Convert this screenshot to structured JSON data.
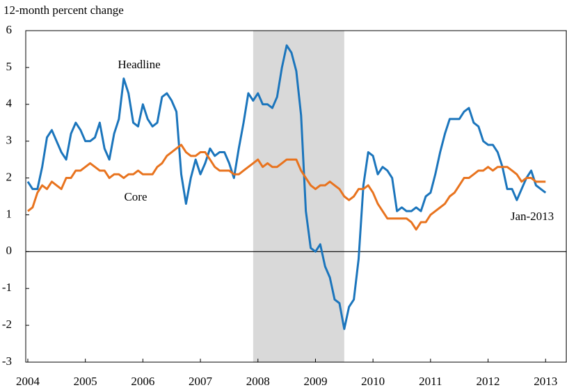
{
  "chart_data": {
    "type": "line",
    "y_axis_label": "12-month percent change",
    "annotations": [
      "Headline",
      "Core",
      "Jan-2013"
    ],
    "shaded_span": [
      2007.917,
      2009.5
    ],
    "shade_color": "#d9d9d9",
    "x": [
      2004,
      2004.083,
      2004.167,
      2004.25,
      2004.333,
      2004.417,
      2004.5,
      2004.583,
      2004.667,
      2004.75,
      2004.833,
      2004.917,
      2005,
      2005.083,
      2005.167,
      2005.25,
      2005.333,
      2005.417,
      2005.5,
      2005.583,
      2005.667,
      2005.75,
      2005.833,
      2005.917,
      2006,
      2006.083,
      2006.167,
      2006.25,
      2006.333,
      2006.417,
      2006.5,
      2006.583,
      2006.667,
      2006.75,
      2006.833,
      2006.917,
      2007,
      2007.083,
      2007.167,
      2007.25,
      2007.333,
      2007.417,
      2007.5,
      2007.583,
      2007.667,
      2007.75,
      2007.833,
      2007.917,
      2008,
      2008.083,
      2008.167,
      2008.25,
      2008.333,
      2008.417,
      2008.5,
      2008.583,
      2008.667,
      2008.75,
      2008.833,
      2008.917,
      2009,
      2009.083,
      2009.167,
      2009.25,
      2009.333,
      2009.417,
      2009.5,
      2009.583,
      2009.667,
      2009.75,
      2009.833,
      2009.917,
      2010,
      2010.083,
      2010.167,
      2010.25,
      2010.333,
      2010.417,
      2010.5,
      2010.583,
      2010.667,
      2010.75,
      2010.833,
      2010.917,
      2011,
      2011.083,
      2011.167,
      2011.25,
      2011.333,
      2011.417,
      2011.5,
      2011.583,
      2011.667,
      2011.75,
      2011.833,
      2011.917,
      2012,
      2012.083,
      2012.167,
      2012.25,
      2012.333,
      2012.417,
      2012.5,
      2012.583,
      2012.667,
      2012.75,
      2012.833,
      2012.917,
      2013
    ],
    "series": [
      {
        "name": "Headline",
        "color": "#1b75bc",
        "values": [
          1.9,
          1.7,
          1.7,
          2.3,
          3.1,
          3.3,
          3.0,
          2.7,
          2.5,
          3.2,
          3.5,
          3.3,
          3.0,
          3.0,
          3.1,
          3.5,
          2.8,
          2.5,
          3.2,
          3.6,
          4.7,
          4.3,
          3.5,
          3.4,
          4.0,
          3.6,
          3.4,
          3.5,
          4.2,
          4.3,
          4.1,
          3.8,
          2.1,
          1.3,
          2.0,
          2.5,
          2.1,
          2.4,
          2.8,
          2.6,
          2.7,
          2.7,
          2.4,
          2.0,
          2.8,
          3.5,
          4.3,
          4.1,
          4.3,
          4.0,
          4.0,
          3.9,
          4.2,
          5.0,
          5.6,
          5.4,
          4.9,
          3.7,
          1.1,
          0.1,
          0.0,
          0.2,
          -0.4,
          -0.7,
          -1.3,
          -1.4,
          -2.1,
          -1.5,
          -1.3,
          -0.2,
          1.8,
          2.7,
          2.6,
          2.1,
          2.3,
          2.2,
          2.0,
          1.1,
          1.2,
          1.1,
          1.1,
          1.2,
          1.1,
          1.5,
          1.6,
          2.1,
          2.7,
          3.2,
          3.6,
          3.6,
          3.6,
          3.8,
          3.9,
          3.5,
          3.4,
          3.0,
          2.9,
          2.9,
          2.7,
          2.3,
          1.7,
          1.7,
          1.4,
          1.7,
          2.0,
          2.2,
          1.8,
          1.7,
          1.6
        ]
      },
      {
        "name": "Core",
        "color": "#e8731e",
        "values": [
          1.1,
          1.2,
          1.6,
          1.8,
          1.7,
          1.9,
          1.8,
          1.7,
          2.0,
          2.0,
          2.2,
          2.2,
          2.3,
          2.4,
          2.3,
          2.2,
          2.2,
          2.0,
          2.1,
          2.1,
          2.0,
          2.1,
          2.1,
          2.2,
          2.1,
          2.1,
          2.1,
          2.3,
          2.4,
          2.6,
          2.7,
          2.8,
          2.9,
          2.7,
          2.6,
          2.6,
          2.7,
          2.7,
          2.5,
          2.3,
          2.2,
          2.2,
          2.2,
          2.1,
          2.1,
          2.2,
          2.3,
          2.4,
          2.5,
          2.3,
          2.4,
          2.3,
          2.3,
          2.4,
          2.5,
          2.5,
          2.5,
          2.2,
          2.0,
          1.8,
          1.7,
          1.8,
          1.8,
          1.9,
          1.8,
          1.7,
          1.5,
          1.4,
          1.5,
          1.7,
          1.7,
          1.8,
          1.6,
          1.3,
          1.1,
          0.9,
          0.9,
          0.9,
          0.9,
          0.9,
          0.8,
          0.6,
          0.8,
          0.8,
          1.0,
          1.1,
          1.2,
          1.3,
          1.5,
          1.6,
          1.8,
          2.0,
          2.0,
          2.1,
          2.2,
          2.2,
          2.3,
          2.2,
          2.3,
          2.3,
          2.3,
          2.2,
          2.1,
          1.9,
          2.0,
          2.0,
          1.9,
          1.9,
          1.9
        ]
      }
    ],
    "xlim": [
      2003.964,
      2013.36
    ],
    "xticks": [
      2004,
      2005,
      2006,
      2007,
      2008,
      2009,
      2010,
      2011,
      2012,
      2013
    ],
    "ylim": [
      -3,
      6
    ],
    "yticks": [
      -3,
      -2,
      -1,
      0,
      1,
      2,
      3,
      4,
      5,
      6
    ]
  }
}
